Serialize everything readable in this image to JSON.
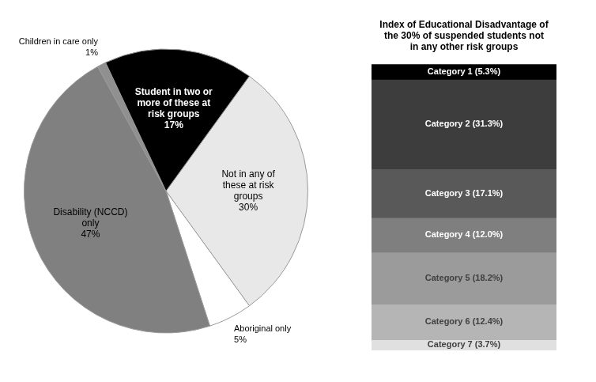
{
  "chart_data": [
    {
      "type": "pie",
      "categories": [
        "Not in any of\nthese at risk\ngroups",
        "Aboriginal only",
        "Disability (NCCD)\nonly",
        "Children in care only",
        "Student in two or\nmore of these at\nrisk groups"
      ],
      "values": [
        30,
        5,
        47,
        1,
        17
      ],
      "value_labels": [
        "30%",
        "5%",
        "47%",
        "1%",
        "17%"
      ],
      "colors": [
        "#e8e8e8",
        "#ffffff",
        "#808080",
        "#909090",
        "#000000"
      ],
      "data_labels": true
    },
    {
      "type": "bar",
      "title": "Index of Educational Disadvantage of\nthe 30% of suspended students not\nin any other risk groups",
      "categories": [
        null
      ],
      "series": [
        {
          "name": "Category 1 (5.3%)",
          "color": "#000000",
          "values": [
            5.3
          ],
          "value_labels": [
            "Category 1 (5.3%)"
          ]
        },
        {
          "name": "Category 2 (31.3%)",
          "color": "#3d3d3d",
          "values": [
            31.3
          ],
          "value_labels": [
            "Category 2 (31.3%)"
          ]
        },
        {
          "name": "Category 3 (17.1%)",
          "color": "#595959",
          "values": [
            17.1
          ],
          "value_labels": [
            "Category 3 (17.1%)"
          ]
        },
        {
          "name": "Category 4 (12.0%)",
          "color": "#7f7f7f",
          "values": [
            12.0
          ],
          "value_labels": [
            "Category 4 (12.0%)"
          ]
        },
        {
          "name": "Category 5 (18.2%)",
          "color": "#9b9b9b",
          "values": [
            18.2
          ],
          "value_labels": [
            "Category 5 (18.2%)"
          ]
        },
        {
          "name": "Category 6 (12.4%)",
          "color": "#b5b5b5",
          "values": [
            12.4
          ],
          "value_labels": [
            "Category 6 (12.4%)"
          ]
        },
        {
          "name": "Category 7 (3.7%)",
          "color": "#e0e0e0",
          "values": [
            3.7
          ],
          "value_labels": [
            "Category 7 (3.7%)"
          ]
        }
      ],
      "stacked": true,
      "ylim": [
        0,
        100
      ],
      "tick_labels": false,
      "data_labels": true
    }
  ]
}
